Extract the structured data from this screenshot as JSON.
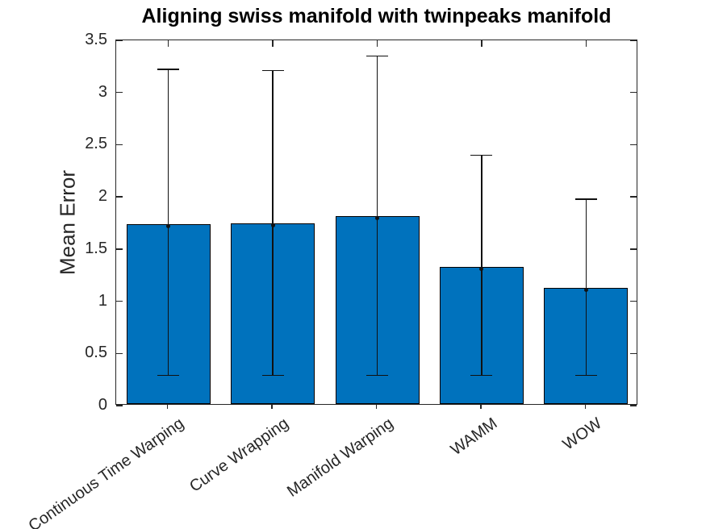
{
  "chart_data": {
    "type": "bar",
    "title": "Aligning swiss manifold with twinpeaks manifold",
    "xlabel": "",
    "ylabel": "Mean Error",
    "categories": [
      "Continuous Time Warping",
      "Curve Wrapping",
      "Manifold Warping",
      "WAMM",
      "WOW"
    ],
    "values": [
      1.72,
      1.73,
      1.8,
      1.31,
      1.11
    ],
    "error_high": [
      3.22,
      3.21,
      3.35,
      2.4,
      1.98
    ],
    "error_low": [
      0.29,
      0.29,
      0.29,
      0.29,
      0.29
    ],
    "ylim": [
      0,
      3.5
    ],
    "ytick_labels": [
      "0",
      "0.5",
      "1",
      "1.5",
      "2",
      "2.5",
      "3",
      "3.5"
    ],
    "grid": false,
    "legend": "none",
    "colors": {
      "bar_fill": "#0072BD",
      "bar_edge": "#000000",
      "error_bar": "#111111",
      "axis": "#262626",
      "tick_text": "#262626",
      "title_text": "#000000"
    }
  }
}
